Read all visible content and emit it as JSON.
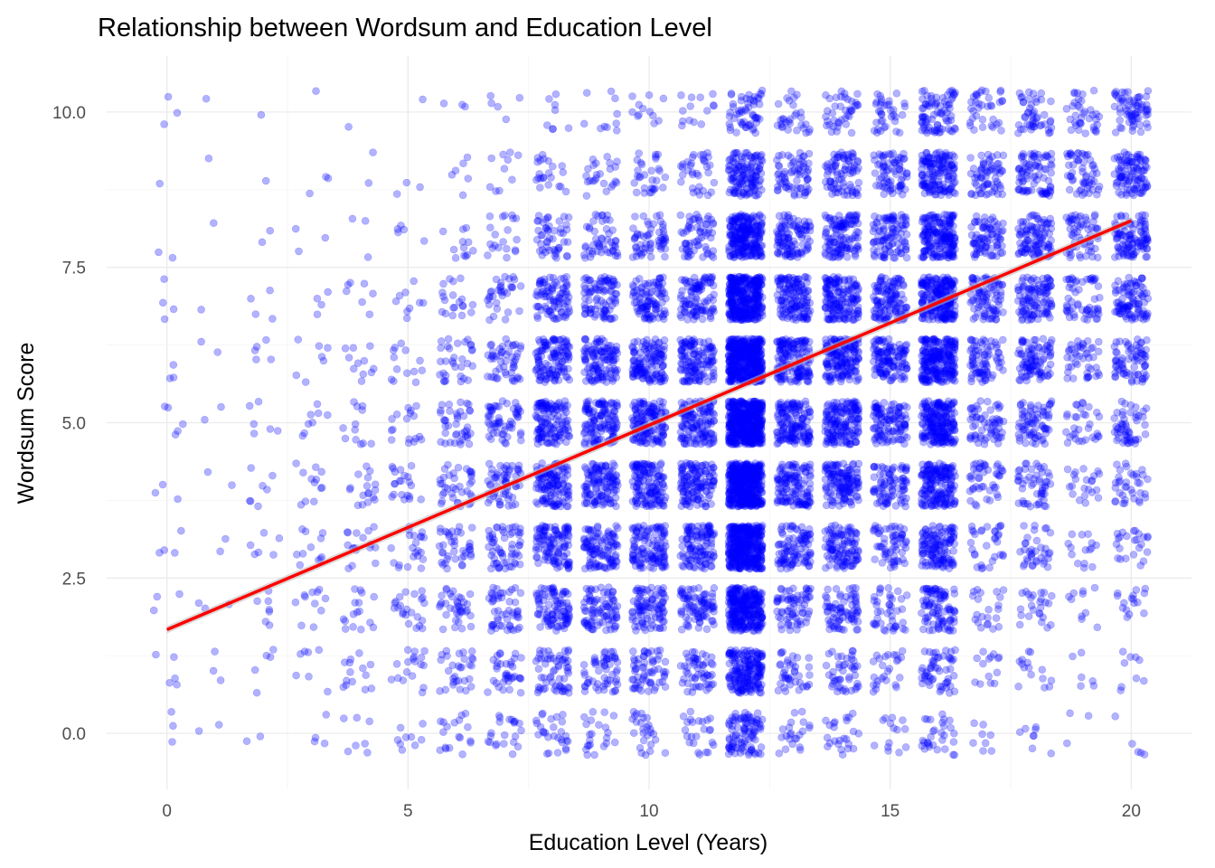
{
  "chart_data": {
    "type": "scatter",
    "title": "Relationship between Wordsum and Education Level",
    "xlabel": "Education Level (Years)",
    "ylabel": "Wordsum Score",
    "xlim": [
      -1.25,
      21.25
    ],
    "ylim": [
      -0.9,
      10.9
    ],
    "x_ticks": [
      0,
      5,
      10,
      15,
      20
    ],
    "x_tick_labels": [
      "0",
      "5",
      "10",
      "15",
      "20"
    ],
    "y_ticks": [
      0,
      2.5,
      5,
      7.5,
      10
    ],
    "y_tick_labels": [
      "0.0",
      "2.5",
      "5.0",
      "7.5",
      "10.0"
    ],
    "grid": true,
    "legend": "none",
    "jitter": 0.35,
    "point_color": "#0000ff",
    "point_opacity": 0.3,
    "fit": {
      "method": "linear",
      "color": "#ff0000",
      "x": [
        0,
        20
      ],
      "y": [
        1.67,
        8.25
      ],
      "confidence_band": "#bebebe"
    },
    "counts": {
      "rows": [
        0,
        1,
        2,
        3,
        4,
        5,
        6,
        7,
        8,
        9,
        10
      ],
      "columns": {
        "0": [
          3,
          5,
          3,
          4,
          3,
          5,
          3,
          4,
          2,
          1,
          3
        ],
        "1": [
          2,
          3,
          3,
          2,
          2,
          2,
          2,
          1,
          1,
          1,
          1
        ],
        "2": [
          2,
          5,
          7,
          6,
          7,
          6,
          5,
          4,
          2,
          1,
          1
        ],
        "3": [
          4,
          7,
          11,
          11,
          12,
          8,
          7,
          4,
          3,
          3,
          1
        ],
        "4": [
          7,
          14,
          16,
          17,
          17,
          12,
          11,
          7,
          3,
          2,
          1
        ],
        "5": [
          9,
          18,
          23,
          22,
          21,
          17,
          13,
          9,
          5,
          3,
          1
        ],
        "6": [
          18,
          30,
          37,
          40,
          38,
          40,
          32,
          20,
          12,
          6,
          3
        ],
        "7": [
          22,
          36,
          50,
          58,
          60,
          58,
          50,
          32,
          20,
          10,
          5
        ],
        "8": [
          28,
          60,
          92,
          112,
          128,
          126,
          118,
          86,
          48,
          22,
          8
        ],
        "9": [
          22,
          55,
          85,
          108,
          120,
          125,
          115,
          88,
          50,
          24,
          10
        ],
        "10": [
          26,
          60,
          92,
          118,
          135,
          138,
          126,
          96,
          58,
          30,
          12
        ],
        "11": [
          24,
          55,
          86,
          115,
          132,
          135,
          128,
          100,
          62,
          34,
          14
        ],
        "12": [
          95,
          190,
          300,
          400,
          460,
          470,
          440,
          360,
          240,
          130,
          55
        ],
        "13": [
          22,
          40,
          70,
          100,
          128,
          150,
          155,
          140,
          105,
          68,
          30
        ],
        "14": [
          24,
          45,
          75,
          108,
          135,
          160,
          168,
          155,
          120,
          82,
          40
        ],
        "15": [
          14,
          26,
          42,
          62,
          85,
          110,
          122,
          120,
          98,
          72,
          36
        ],
        "16": [
          30,
          55,
          92,
          130,
          175,
          215,
          240,
          230,
          190,
          145,
          80
        ],
        "17": [
          8,
          14,
          22,
          32,
          45,
          62,
          78,
          88,
          80,
          65,
          36
        ],
        "18": [
          8,
          15,
          25,
          36,
          52,
          72,
          92,
          108,
          100,
          82,
          48
        ],
        "19": [
          3,
          6,
          10,
          15,
          22,
          32,
          44,
          56,
          60,
          55,
          36
        ],
        "20": [
          5,
          9,
          16,
          24,
          36,
          52,
          72,
          95,
          105,
          100,
          68
        ]
      }
    }
  }
}
